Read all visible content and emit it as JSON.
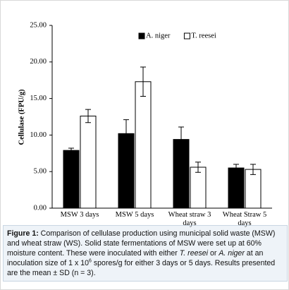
{
  "chart_data": {
    "type": "bar",
    "y_label": "Cellulase (FPU/g)",
    "categories": [
      "MSW 3 days",
      "MSW 5 days",
      "Wheat straw 3 days",
      "Wheat Straw 5 days"
    ],
    "series": [
      {
        "name": "A. niger",
        "color": "#000000",
        "values": [
          7.9,
          10.2,
          9.4,
          5.5
        ],
        "errors": [
          0.3,
          1.9,
          1.7,
          0.5
        ]
      },
      {
        "name": "T. reesei",
        "color": "#ffffff",
        "values": [
          12.6,
          17.3,
          5.6,
          5.3
        ],
        "errors": [
          0.9,
          2.0,
          0.7,
          0.7
        ]
      }
    ],
    "ylim": [
      0,
      25
    ],
    "yticks": [
      {
        "value": 0,
        "label": "0.00"
      },
      {
        "value": 5,
        "label": "5.00"
      },
      {
        "value": 10,
        "label": "10.00"
      },
      {
        "value": 15,
        "label": "15.00"
      },
      {
        "value": 20,
        "label": "20.00"
      },
      {
        "value": 25,
        "label": "25.00"
      }
    ],
    "legend": "top"
  },
  "caption": [
    {
      "text": "Figure 1:",
      "bold": true
    },
    {
      "text": " Comparison of cellulase production using municipal solid waste (MSW) and wheat straw (WS). Solid state fermentations of MSW were set up at 60% moisture content. These were inoculated with either "
    },
    {
      "text": "T. reesei",
      "italic": true
    },
    {
      "text": " or "
    },
    {
      "text": "A. niger",
      "italic": true
    },
    {
      "text": " at an inoculation size of 1 x 10"
    },
    {
      "text": "6",
      "sup": true
    },
    {
      "text": " spores/g for either 3 days or 5 days. Results presented are the mean ± SD (n = 3)."
    }
  ]
}
